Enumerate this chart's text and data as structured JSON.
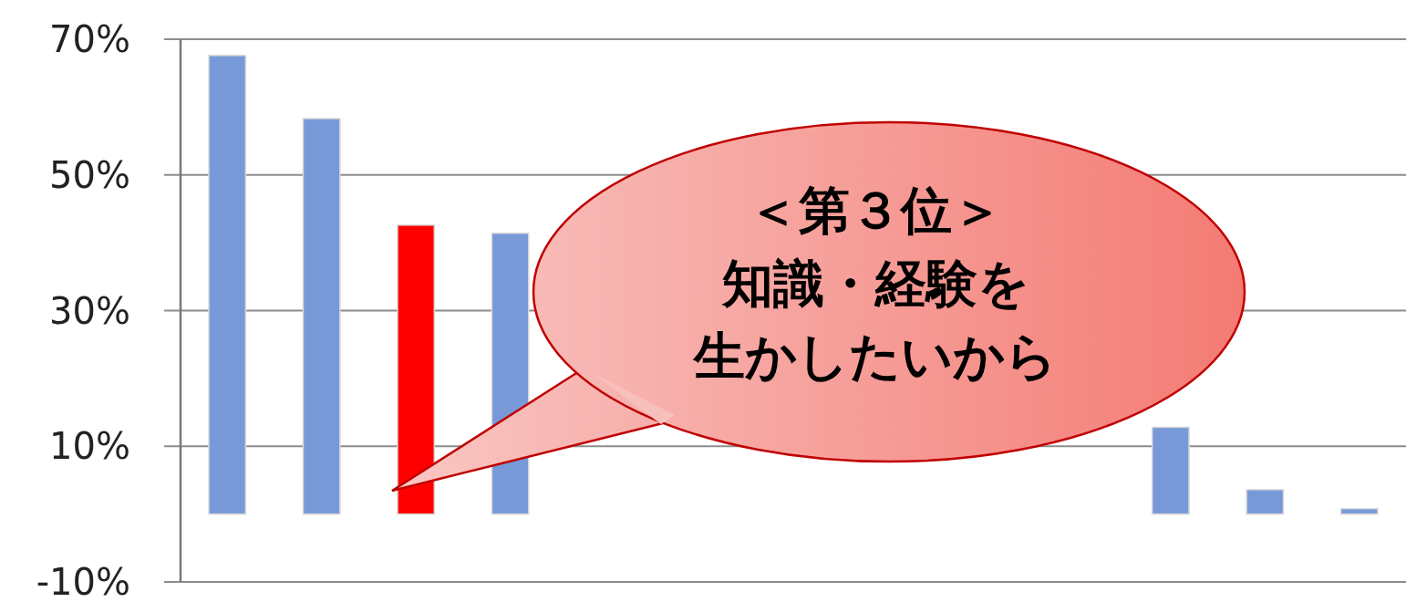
{
  "chart_data": {
    "type": "bar",
    "categories": [
      null,
      null,
      null,
      null,
      null,
      null,
      null,
      null,
      null,
      null,
      null,
      null,
      null
    ],
    "values": [
      67.6,
      58.3,
      42.6,
      41.4,
      null,
      null,
      null,
      null,
      null,
      null,
      12.8,
      3.6,
      0.8
    ],
    "colors": [
      "#7799d8",
      "#7799d8",
      "#ff0000",
      "#7799d8",
      null,
      null,
      null,
      null,
      null,
      null,
      "#7799d8",
      "#7799d8",
      "#7799d8"
    ],
    "ylim": [
      -10,
      70
    ],
    "yticks": [
      {
        "value": 70,
        "label": "70%"
      },
      {
        "value": 50,
        "label": "50%"
      },
      {
        "value": 30,
        "label": "30%"
      },
      {
        "value": 10,
        "label": "10%"
      },
      {
        "value": -10,
        "label": "-10%"
      }
    ],
    "grid": "y",
    "annotations": [
      "＜第３位＞",
      "知識・経験を",
      "生かしたいから"
    ]
  }
}
